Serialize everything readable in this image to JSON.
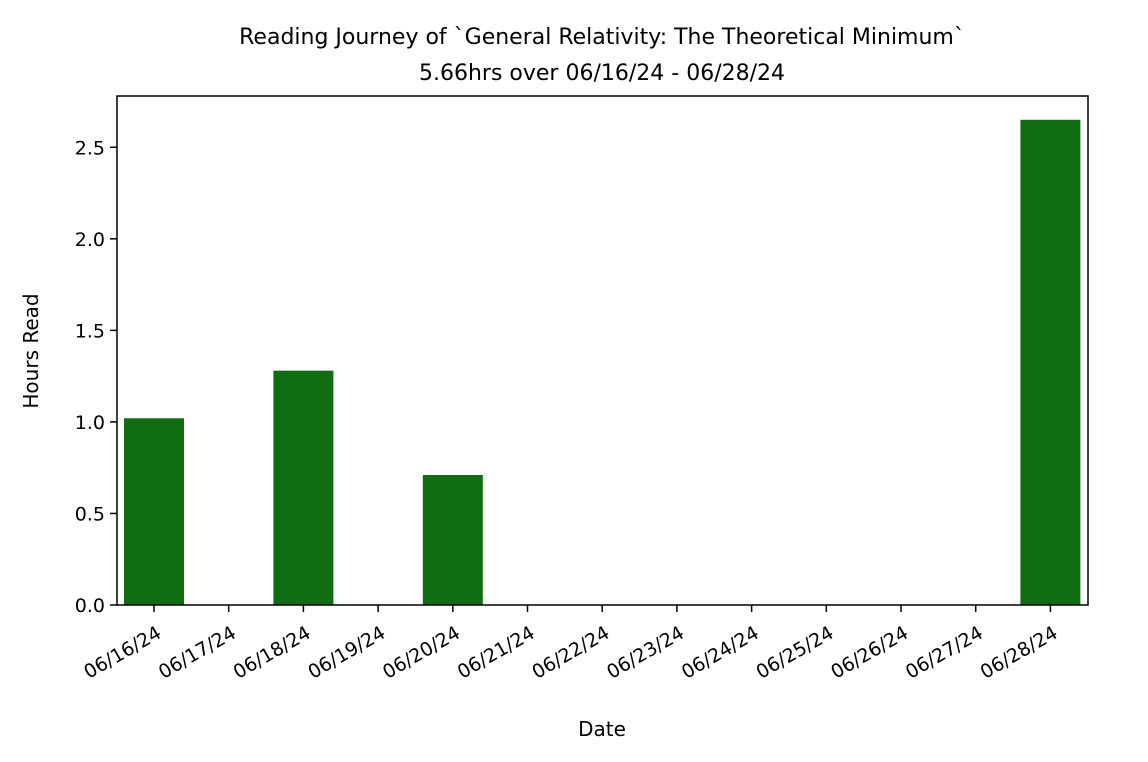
{
  "chart_data": {
    "type": "bar",
    "title": "Reading Journey of `General Relativity: The Theoretical Minimum`",
    "subtitle": "5.66hrs over 06/16/24 - 06/28/24",
    "xlabel": "Date",
    "ylabel": "Hours Read",
    "categories": [
      "06/16/24",
      "06/17/24",
      "06/18/24",
      "06/19/24",
      "06/20/24",
      "06/21/24",
      "06/22/24",
      "06/23/24",
      "06/24/24",
      "06/25/24",
      "06/26/24",
      "06/27/24",
      "06/28/24"
    ],
    "values": [
      1.02,
      0,
      1.28,
      0,
      0.71,
      0,
      0,
      0,
      0,
      0,
      0,
      0,
      2.65
    ],
    "ylim": [
      0,
      2.78
    ],
    "yticks": [
      0.0,
      0.5,
      1.0,
      1.5,
      2.0,
      2.5
    ],
    "ytick_labels": [
      "0.0",
      "0.5",
      "1.0",
      "1.5",
      "2.0",
      "2.5"
    ],
    "grid": false,
    "bar_color": "#0f6e0f"
  }
}
